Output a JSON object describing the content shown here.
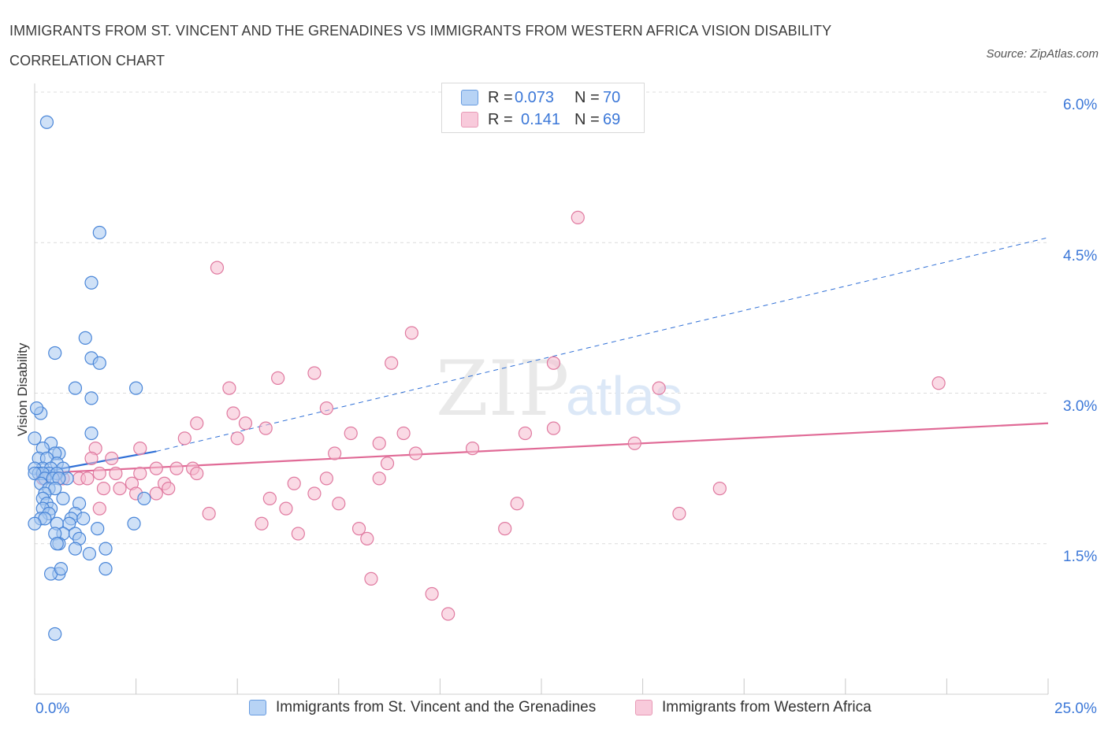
{
  "header": {
    "title": "IMMIGRANTS FROM ST. VINCENT AND THE GRENADINES VS IMMIGRANTS FROM WESTERN AFRICA VISION DISABILITY CORRELATION CHART",
    "source": "Source: ZipAtlas.com"
  },
  "legend": {
    "rows": [
      {
        "r_label": "R =",
        "r_value": "0.073",
        "n_label": "N =",
        "n_value": "70",
        "color": "#a8c8f0"
      },
      {
        "r_label": "R =",
        "r_value": "0.141",
        "n_label": "N =",
        "n_value": "69",
        "color": "#f6bcd0"
      }
    ]
  },
  "colors": {
    "blue_fill": "#a8c8f0",
    "blue_stroke": "#4a86d8",
    "blue_line": "#2f6fd6",
    "pink_fill": "#f6bcd0",
    "pink_stroke": "#e07aa0",
    "pink_line": "#e06a96",
    "grid": "#dcdcdc",
    "axis_label": "#3c78d8"
  },
  "chart_data": {
    "type": "scatter",
    "ylabel": "Vision Disability",
    "xlabel": "",
    "xlim": [
      0,
      25
    ],
    "ylim": [
      0,
      6.0
    ],
    "x_tick_labels": [
      "0.0%",
      "25.0%"
    ],
    "y_tick_labels": [
      "1.5%",
      "3.0%",
      "4.5%",
      "6.0%"
    ],
    "y_ticks": [
      1.5,
      3.0,
      4.5,
      6.0
    ],
    "grid": true,
    "watermark": {
      "zip": "ZIP",
      "atlas": "atlas"
    },
    "series": [
      {
        "name": "Immigrants from St. Vincent and the Grenadines",
        "color": "blue",
        "points": [
          [
            0.3,
            5.7
          ],
          [
            1.6,
            4.6
          ],
          [
            1.4,
            4.1
          ],
          [
            1.25,
            3.55
          ],
          [
            0.5,
            3.4
          ],
          [
            1.4,
            3.35
          ],
          [
            1.6,
            3.3
          ],
          [
            1.0,
            3.05
          ],
          [
            2.5,
            3.05
          ],
          [
            1.4,
            2.95
          ],
          [
            0.15,
            2.8
          ],
          [
            0.05,
            2.85
          ],
          [
            1.4,
            2.6
          ],
          [
            0.0,
            2.55
          ],
          [
            0.4,
            2.5
          ],
          [
            0.2,
            2.45
          ],
          [
            0.6,
            2.4
          ],
          [
            0.5,
            2.4
          ],
          [
            0.1,
            2.35
          ],
          [
            0.3,
            2.35
          ],
          [
            0.55,
            2.3
          ],
          [
            0.7,
            2.25
          ],
          [
            0.2,
            2.25
          ],
          [
            0.4,
            2.25
          ],
          [
            0.0,
            2.25
          ],
          [
            0.1,
            2.2
          ],
          [
            0.35,
            2.2
          ],
          [
            0.2,
            2.2
          ],
          [
            0.55,
            2.2
          ],
          [
            0.0,
            2.2
          ],
          [
            0.25,
            2.15
          ],
          [
            0.45,
            2.15
          ],
          [
            0.8,
            2.15
          ],
          [
            0.6,
            2.15
          ],
          [
            0.15,
            2.1
          ],
          [
            0.35,
            2.05
          ],
          [
            0.5,
            2.05
          ],
          [
            0.25,
            2.0
          ],
          [
            0.2,
            1.95
          ],
          [
            0.7,
            1.95
          ],
          [
            2.7,
            1.95
          ],
          [
            0.3,
            1.9
          ],
          [
            1.1,
            1.9
          ],
          [
            0.4,
            1.85
          ],
          [
            0.2,
            1.85
          ],
          [
            1.0,
            1.8
          ],
          [
            0.35,
            1.8
          ],
          [
            0.15,
            1.75
          ],
          [
            0.25,
            1.75
          ],
          [
            0.9,
            1.75
          ],
          [
            1.2,
            1.75
          ],
          [
            0.85,
            1.7
          ],
          [
            0.55,
            1.7
          ],
          [
            0.0,
            1.7
          ],
          [
            2.45,
            1.7
          ],
          [
            1.55,
            1.65
          ],
          [
            0.7,
            1.6
          ],
          [
            1.0,
            1.6
          ],
          [
            0.5,
            1.6
          ],
          [
            1.1,
            1.55
          ],
          [
            0.6,
            1.5
          ],
          [
            0.55,
            1.5
          ],
          [
            1.75,
            1.45
          ],
          [
            1.0,
            1.45
          ],
          [
            1.35,
            1.4
          ],
          [
            0.6,
            1.2
          ],
          [
            1.75,
            1.25
          ],
          [
            0.4,
            1.2
          ],
          [
            0.65,
            1.25
          ],
          [
            0.5,
            0.6
          ]
        ],
        "trend": {
          "x": [
            0.0,
            3.0
          ],
          "y": [
            2.2,
            2.42
          ]
        },
        "trend_extended": {
          "x": [
            3.0,
            25.0
          ],
          "y": [
            2.42,
            4.55
          ]
        }
      },
      {
        "name": "Immigrants from Western Africa",
        "color": "pink",
        "points": [
          [
            13.4,
            4.75
          ],
          [
            4.5,
            4.25
          ],
          [
            9.3,
            3.6
          ],
          [
            8.8,
            3.3
          ],
          [
            12.8,
            3.3
          ],
          [
            6.9,
            3.2
          ],
          [
            6.0,
            3.15
          ],
          [
            22.3,
            3.1
          ],
          [
            4.8,
            3.05
          ],
          [
            15.4,
            3.05
          ],
          [
            7.2,
            2.85
          ],
          [
            4.9,
            2.8
          ],
          [
            5.2,
            2.7
          ],
          [
            4.0,
            2.7
          ],
          [
            12.8,
            2.65
          ],
          [
            5.7,
            2.65
          ],
          [
            7.8,
            2.6
          ],
          [
            9.1,
            2.6
          ],
          [
            12.1,
            2.6
          ],
          [
            5.0,
            2.55
          ],
          [
            3.7,
            2.55
          ],
          [
            14.8,
            2.5
          ],
          [
            8.5,
            2.5
          ],
          [
            10.8,
            2.45
          ],
          [
            2.6,
            2.45
          ],
          [
            1.5,
            2.45
          ],
          [
            7.4,
            2.4
          ],
          [
            9.4,
            2.4
          ],
          [
            1.9,
            2.35
          ],
          [
            1.4,
            2.35
          ],
          [
            8.7,
            2.3
          ],
          [
            3.0,
            2.25
          ],
          [
            3.5,
            2.25
          ],
          [
            3.9,
            2.25
          ],
          [
            4.0,
            2.2
          ],
          [
            2.6,
            2.2
          ],
          [
            2.0,
            2.2
          ],
          [
            1.6,
            2.2
          ],
          [
            1.1,
            2.15
          ],
          [
            1.3,
            2.15
          ],
          [
            0.7,
            2.15
          ],
          [
            0.2,
            2.15
          ],
          [
            7.2,
            2.15
          ],
          [
            8.5,
            2.15
          ],
          [
            2.4,
            2.1
          ],
          [
            3.2,
            2.1
          ],
          [
            6.4,
            2.1
          ],
          [
            1.7,
            2.05
          ],
          [
            3.3,
            2.05
          ],
          [
            2.1,
            2.05
          ],
          [
            6.9,
            2.0
          ],
          [
            2.5,
            2.0
          ],
          [
            3.0,
            2.0
          ],
          [
            5.8,
            1.95
          ],
          [
            7.5,
            1.9
          ],
          [
            11.9,
            1.9
          ],
          [
            16.9,
            2.05
          ],
          [
            6.2,
            1.85
          ],
          [
            1.6,
            1.85
          ],
          [
            4.3,
            1.8
          ],
          [
            15.9,
            1.8
          ],
          [
            5.6,
            1.7
          ],
          [
            8.0,
            1.65
          ],
          [
            11.6,
            1.65
          ],
          [
            6.5,
            1.6
          ],
          [
            8.2,
            1.55
          ],
          [
            8.3,
            1.15
          ],
          [
            9.8,
            1.0
          ],
          [
            10.2,
            0.8
          ]
        ],
        "trend": {
          "x": [
            0.0,
            25.0
          ],
          "y": [
            2.2,
            2.7
          ]
        }
      }
    ]
  }
}
